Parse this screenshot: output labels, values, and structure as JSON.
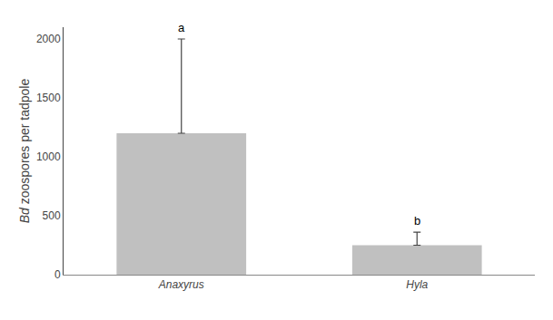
{
  "chart_data": {
    "type": "bar",
    "categories": [
      "Anaxyrus",
      "Hyla"
    ],
    "values": [
      1200,
      250
    ],
    "errors_upper": [
      800,
      110
    ],
    "annotations": [
      "a",
      "b"
    ],
    "ylabel": "Bd zoospores per tadpole",
    "color": "#c0c0c0",
    "ylim": [
      0,
      2100
    ],
    "yticks": [
      0,
      500,
      1000,
      1500,
      2000
    ],
    "grid": false
  }
}
